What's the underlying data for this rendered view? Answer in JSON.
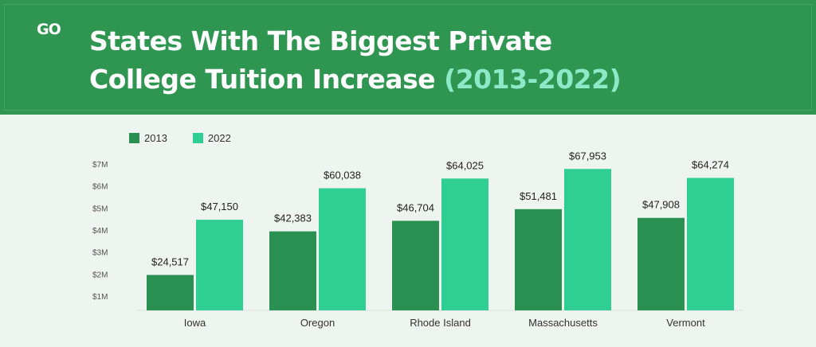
{
  "header": {
    "logo": "GO",
    "title_line1": "States With The Biggest Private",
    "title_line2": "College Tuition Increase",
    "title_years": "(2013-2022)"
  },
  "colors": {
    "header_bg": "#2e9650",
    "series_2013": "#2a9152",
    "series_2022": "#2fcf93",
    "years_accent": "#8ee9c8"
  },
  "chart_data": {
    "type": "bar",
    "categories": [
      "Iowa",
      "Oregon",
      "Rhode Island",
      "Massachusetts",
      "Vermont"
    ],
    "series": [
      {
        "name": "2013",
        "values": [
          24517,
          42383,
          46704,
          51481,
          47908
        ],
        "labels": [
          "$24,517",
          "$42,383",
          "$46,704",
          "$51,481",
          "$47,908"
        ]
      },
      {
        "name": "2022",
        "values": [
          47150,
          60038,
          64025,
          67953,
          64274
        ],
        "labels": [
          "$47,150",
          "$60,038",
          "$64,025",
          "$67,953",
          "$64,274"
        ]
      }
    ],
    "y_ticks": [
      "$1M",
      "$2M",
      "$3M",
      "$4M",
      "$5M",
      "$6M",
      "$7M"
    ],
    "legend_position": "top-left",
    "grid": false,
    "ylim": [
      10000,
      70000
    ]
  }
}
